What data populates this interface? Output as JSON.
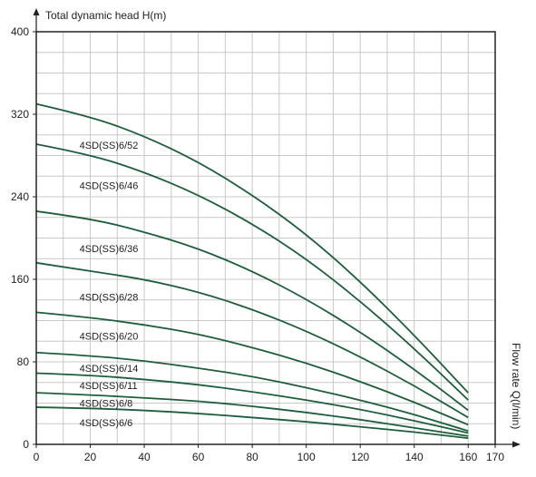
{
  "colors": {
    "curve": "#1e5e3a",
    "grid": "#c8c8c8",
    "frame": "#222222",
    "axis": "#222222",
    "text": "#222222",
    "background": "#ffffff"
  },
  "chart_data": {
    "type": "line",
    "title": "",
    "ylabel": "Total dynamic head H(m)",
    "xlabel": "Flow rate Q(l/min)",
    "xlim": [
      0,
      170
    ],
    "ylim": [
      0,
      400
    ],
    "x_ticks": [
      0,
      20,
      40,
      60,
      80,
      100,
      120,
      140,
      160,
      170
    ],
    "y_ticks": [
      0,
      80,
      160,
      240,
      320,
      400
    ],
    "grid": true,
    "legend": "inline labels",
    "x": [
      0,
      20,
      40,
      60,
      80,
      100,
      120,
      140,
      160
    ],
    "series": [
      {
        "name": "4SD(SS)6/52",
        "values": [
          330,
          318,
          299,
          274,
          242,
          204,
          158,
          106,
          50
        ],
        "label_at": [
          16,
          290
        ]
      },
      {
        "name": "4SD(SS)6/46",
        "values": [
          291,
          281,
          264,
          242,
          214,
          180,
          139,
          93,
          43
        ],
        "label_at": [
          16,
          251
        ]
      },
      {
        "name": "4SD(SS)6/36",
        "values": [
          226,
          219,
          206,
          190,
          168,
          141,
          109,
          73,
          33
        ],
        "label_at": [
          16,
          190
        ]
      },
      {
        "name": "4SD(SS)6/28",
        "values": [
          176,
          168,
          160,
          148,
          131,
          110,
          85,
          57,
          26
        ],
        "label_at": [
          16,
          143
        ]
      },
      {
        "name": "4SD(SS)6/20",
        "values": [
          128,
          123,
          116,
          107,
          94,
          79,
          61,
          41,
          19
        ],
        "label_at": [
          16,
          105
        ]
      },
      {
        "name": "4SD(SS)6/14",
        "values": [
          89,
          86,
          81,
          74,
          66,
          55,
          43,
          29,
          13
        ],
        "label_at": [
          16,
          74
        ]
      },
      {
        "name": "4SD(SS)6/11",
        "values": [
          69,
          67,
          63,
          58,
          51,
          43,
          34,
          23,
          11
        ],
        "label_at": [
          16,
          57
        ]
      },
      {
        "name": "4SD(SS)6/8",
        "values": [
          50,
          48,
          45,
          42,
          37,
          31,
          24,
          16,
          8
        ],
        "label_at": [
          16,
          40
        ]
      },
      {
        "name": "4SD(SS)6/6",
        "values": [
          36,
          35,
          33,
          30,
          26,
          22,
          17,
          12,
          6
        ],
        "label_at": [
          16,
          21
        ]
      }
    ]
  }
}
